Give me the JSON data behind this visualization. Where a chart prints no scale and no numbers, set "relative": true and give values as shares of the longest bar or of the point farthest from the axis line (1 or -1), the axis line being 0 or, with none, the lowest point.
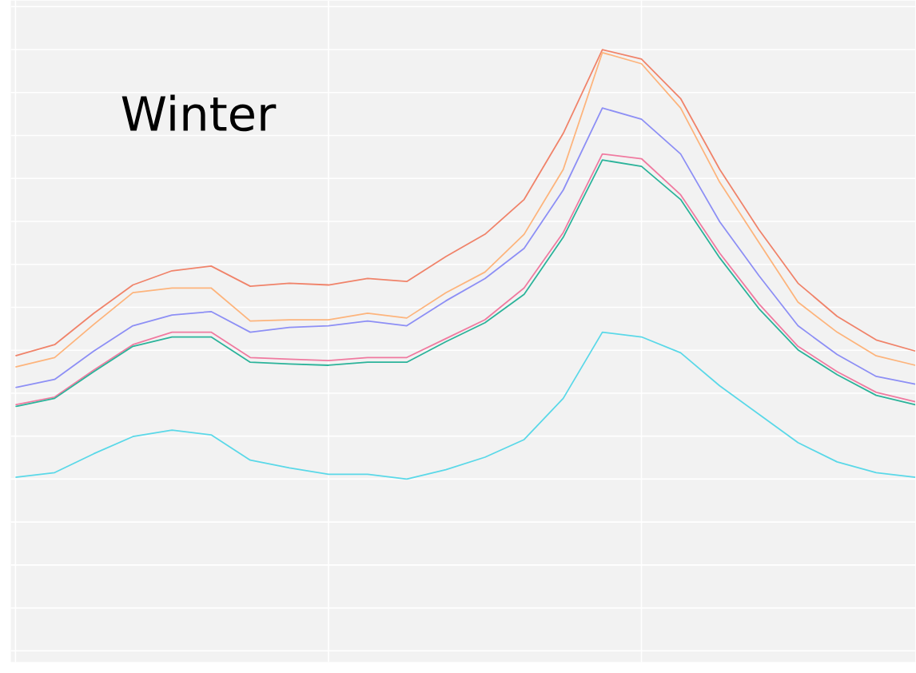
{
  "chart_data": {
    "type": "line",
    "title": "Winter",
    "relative": true,
    "grid": true,
    "categories": [
      null,
      null,
      null,
      null,
      null,
      null,
      null,
      null,
      null,
      null,
      null,
      null,
      null,
      null,
      null,
      null,
      null,
      null,
      null,
      null,
      null,
      null,
      null,
      null
    ],
    "series": [
      {
        "color": "#f0836a",
        "values": [
          0.287,
          0.313,
          0.386,
          0.452,
          0.485,
          0.496,
          0.449,
          0.456,
          0.452,
          0.467,
          0.46,
          0.518,
          0.57,
          0.651,
          0.805,
          1,
          0.978,
          0.886,
          0.721,
          0.581,
          0.456,
          0.379,
          0.324,
          0.298
        ]
      },
      {
        "color": "#fdb47c",
        "values": [
          0.261,
          0.283,
          0.36,
          0.434,
          0.445,
          0.445,
          0.368,
          0.371,
          0.371,
          0.386,
          0.375,
          0.434,
          0.482,
          0.57,
          0.721,
          0.993,
          0.967,
          0.864,
          0.691,
          0.551,
          0.412,
          0.342,
          0.287,
          0.265
        ]
      },
      {
        "color": "#8d8ff5",
        "values": [
          0.213,
          0.232,
          0.298,
          0.357,
          0.382,
          0.39,
          0.342,
          0.353,
          0.357,
          0.368,
          0.357,
          0.415,
          0.467,
          0.537,
          0.673,
          0.864,
          0.838,
          0.757,
          0.599,
          0.474,
          0.357,
          0.29,
          0.239,
          0.221
        ]
      },
      {
        "color": "#f07aa0",
        "values": [
          0.173,
          0.191,
          0.254,
          0.313,
          0.342,
          0.342,
          0.283,
          0.279,
          0.276,
          0.283,
          0.283,
          0.327,
          0.371,
          0.445,
          0.574,
          0.757,
          0.746,
          0.662,
          0.526,
          0.408,
          0.309,
          0.25,
          0.202,
          0.18
        ]
      },
      {
        "color": "#2bb39a",
        "values": [
          0.169,
          0.188,
          0.25,
          0.309,
          0.331,
          0.331,
          0.272,
          0.268,
          0.265,
          0.272,
          0.272,
          0.32,
          0.364,
          0.43,
          0.563,
          0.743,
          0.728,
          0.651,
          0.515,
          0.397,
          0.301,
          0.243,
          0.195,
          0.173
        ]
      },
      {
        "color": "#5ad8e8",
        "values": [
          0.004,
          0.015,
          0.059,
          0.099,
          0.114,
          0.103,
          0.044,
          0.026,
          0.011,
          0.011,
          0,
          0.022,
          0.051,
          0.092,
          0.188,
          0.342,
          0.331,
          0.294,
          0.217,
          0.151,
          0.085,
          0.04,
          0.015,
          0.004
        ]
      }
    ]
  }
}
